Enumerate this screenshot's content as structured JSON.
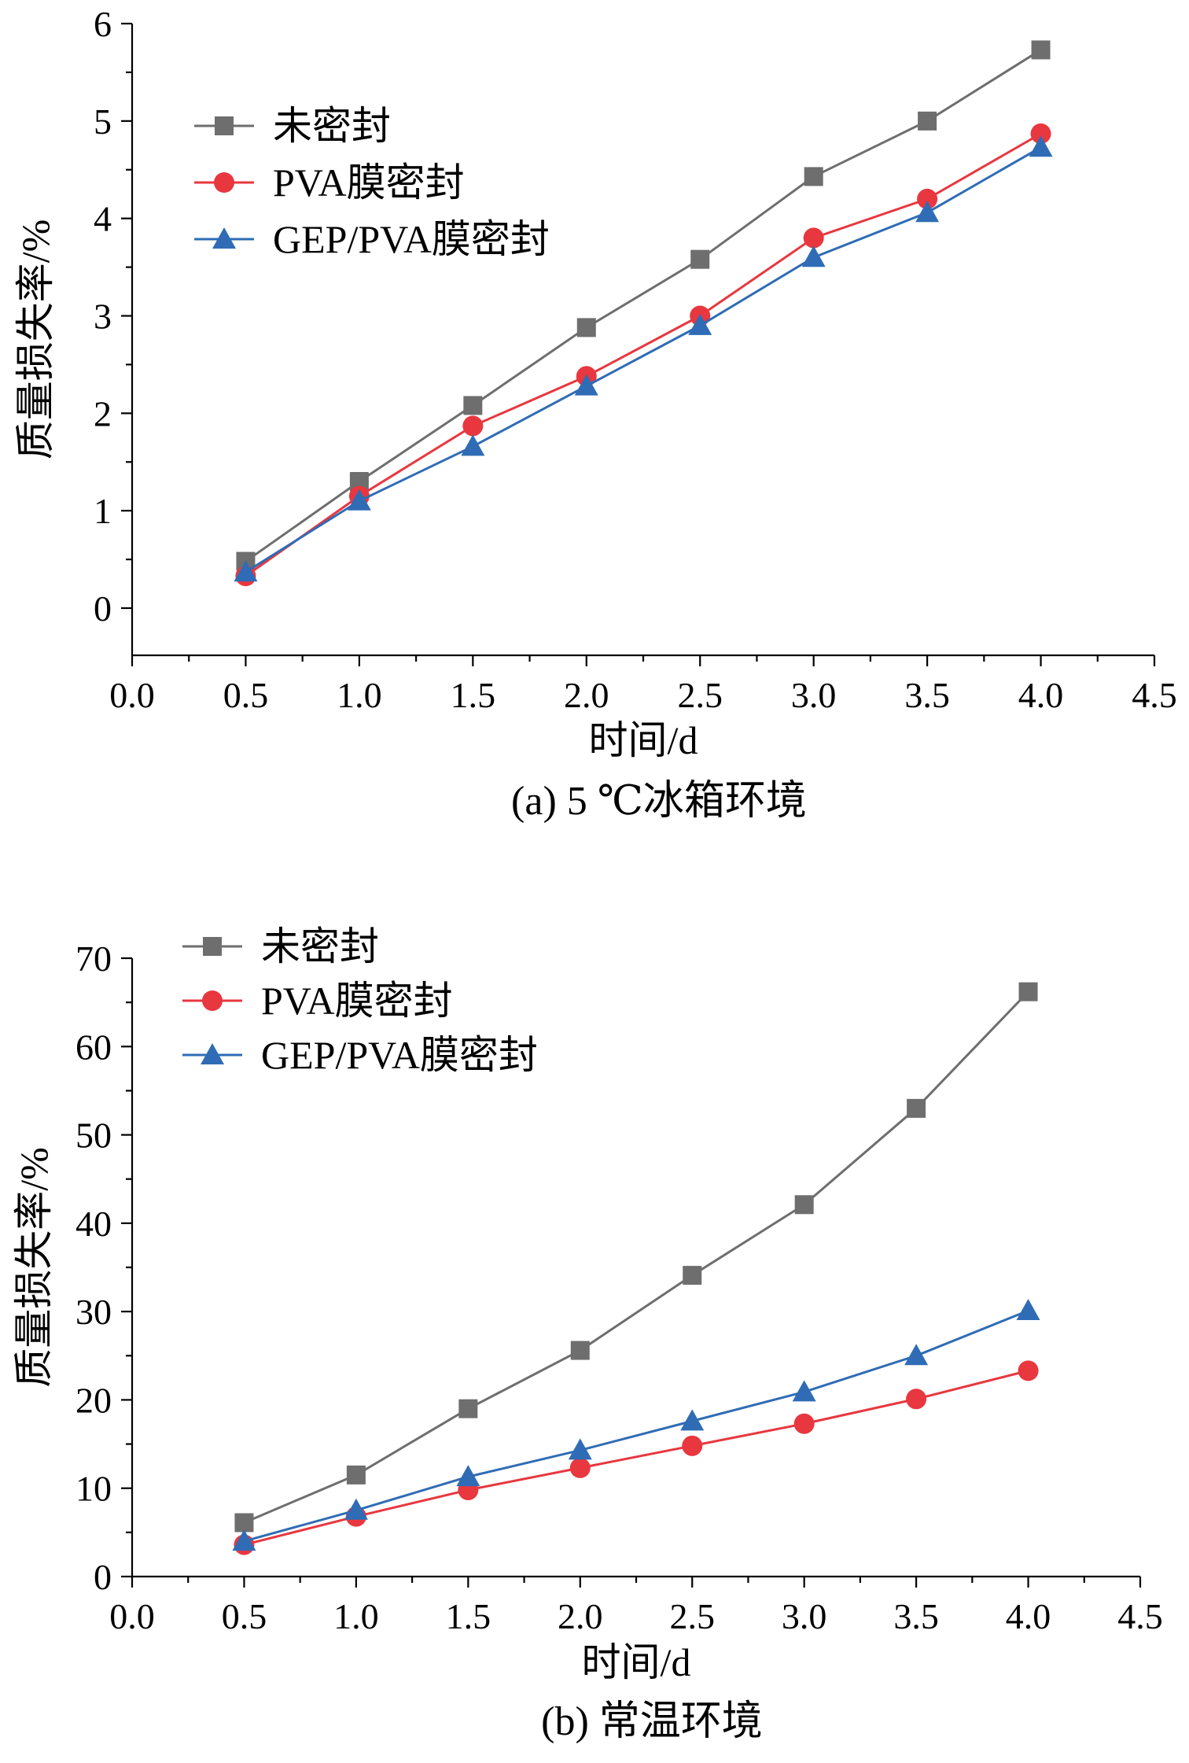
{
  "series_style": [
    {
      "color": "#6e6e6e",
      "marker": "square"
    },
    {
      "color": "#e8373f",
      "marker": "circle"
    },
    {
      "color": "#2f6cb5",
      "marker": "triangle"
    }
  ],
  "chart_data": [
    {
      "type": "line",
      "caption": "(a) 5 ℃冰箱环境",
      "xlabel": "时间/d",
      "ylabel": "质量损失率/%",
      "xlim": [
        0.0,
        4.5
      ],
      "ylim": [
        -0.5,
        6
      ],
      "xticks": [
        "0.0",
        "0.5",
        "1.0",
        "1.5",
        "2.0",
        "2.5",
        "3.0",
        "3.5",
        "4.0",
        "4.5"
      ],
      "yticks": [
        "0",
        "1",
        "2",
        "3",
        "4",
        "5",
        "6"
      ],
      "legend_position": "top-left",
      "x": [
        0.5,
        1.0,
        1.5,
        2.0,
        2.5,
        3.0,
        3.5,
        4.0
      ],
      "series": [
        {
          "name": "未密封",
          "values": [
            0.48,
            1.3,
            2.08,
            2.88,
            3.58,
            4.43,
            5.0,
            5.73
          ]
        },
        {
          "name": "PVA膜密封",
          "values": [
            0.33,
            1.15,
            1.87,
            2.38,
            3.0,
            3.8,
            4.2,
            4.87
          ]
        },
        {
          "name": "GEP/PVA膜密封",
          "values": [
            0.37,
            1.1,
            1.66,
            2.28,
            2.9,
            3.6,
            4.06,
            4.73
          ]
        }
      ]
    },
    {
      "type": "line",
      "caption": "(b) 常温环境",
      "xlabel": "时间/d",
      "ylabel": "质量损失率/%",
      "xlim": [
        0.0,
        4.5
      ],
      "ylim": [
        0,
        70
      ],
      "xticks": [
        "0.0",
        "0.5",
        "1.0",
        "1.5",
        "2.0",
        "2.5",
        "3.0",
        "3.5",
        "4.0",
        "4.5"
      ],
      "yticks": [
        "0",
        "10",
        "20",
        "30",
        "40",
        "50",
        "60",
        "70"
      ],
      "legend_position": "top-left",
      "x": [
        0.5,
        1.0,
        1.5,
        2.0,
        2.5,
        3.0,
        3.5,
        4.0
      ],
      "series": [
        {
          "name": "未密封",
          "values": [
            6.1,
            11.5,
            19.0,
            25.6,
            34.1,
            42.1,
            53.0,
            66.2
          ]
        },
        {
          "name": "PVA膜密封",
          "values": [
            3.6,
            6.8,
            9.8,
            12.3,
            14.8,
            17.3,
            20.1,
            23.3
          ]
        },
        {
          "name": "GEP/PVA膜密封",
          "values": [
            4.0,
            7.5,
            11.3,
            14.3,
            17.6,
            20.9,
            25.0,
            30.1
          ]
        }
      ]
    }
  ]
}
